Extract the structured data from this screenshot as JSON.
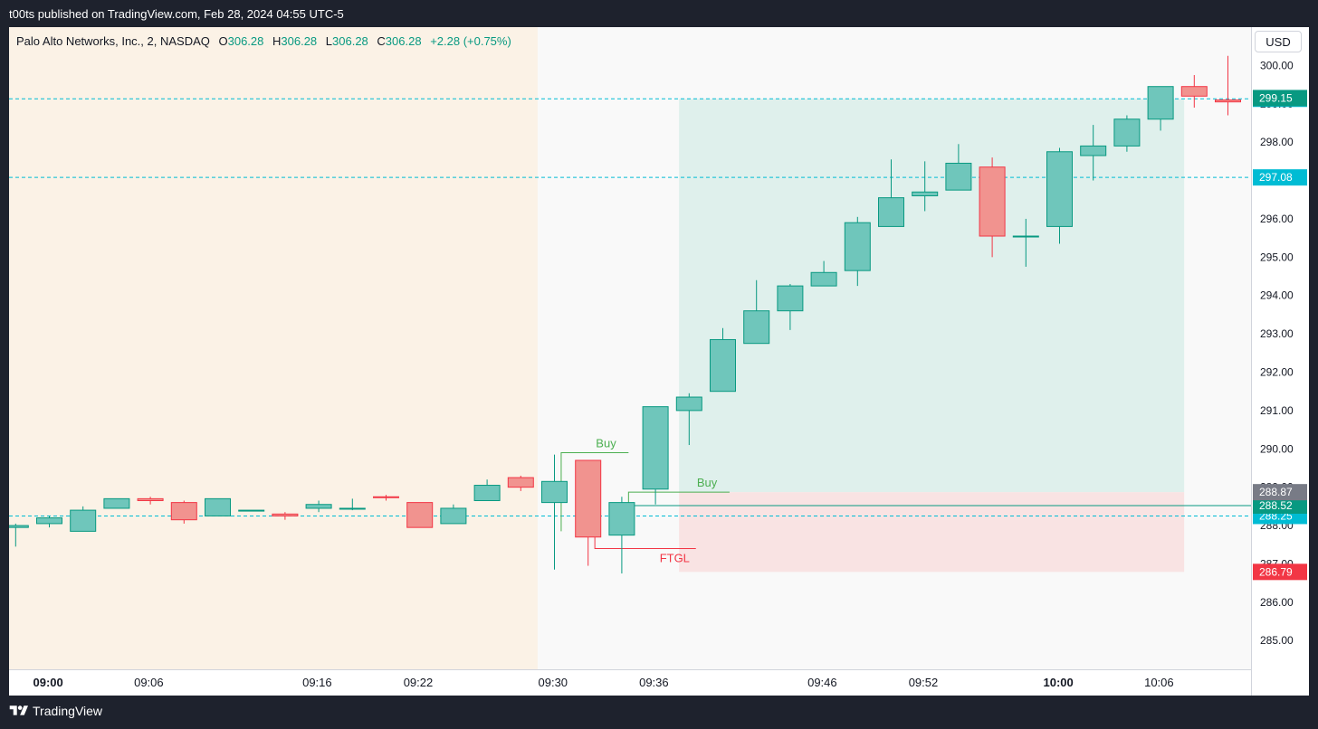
{
  "header": {
    "published_text": "t00ts published on TradingView.com, Feb 28, 2024 04:55 UTC-5"
  },
  "footer": {
    "brand": "TradingView",
    "logo_icon": "tradingview-logo-icon"
  },
  "legend": {
    "symbol": "Palo Alto Networks, Inc., 2, NASDAQ",
    "open_label": "O",
    "open": "306.28",
    "high_label": "H",
    "high": "306.28",
    "low_label": "L",
    "low": "306.28",
    "close_label": "C",
    "close": "306.28",
    "change": "+2.28 (+0.75%)"
  },
  "currency_button": "USD",
  "colors": {
    "up": "#089981",
    "up_fill": "#6fc6bb",
    "down": "#f23645",
    "down_fill": "#f1938f",
    "premarket_bg": "#fbf2e6",
    "target_zone": "#dff0ec",
    "stop_zone": "#f9e3e3",
    "level_line": "#00bcd4",
    "buy_label": "#4caf50"
  },
  "chart_data": {
    "type": "candlestick",
    "yaxis": {
      "min": 284.25,
      "max": 301.0,
      "ticks": [
        "285.00",
        "286.00",
        "287.00",
        "288.00",
        "289.00",
        "290.00",
        "291.00",
        "292.00",
        "293.00",
        "294.00",
        "295.00",
        "296.00",
        "297.00",
        "298.00",
        "299.00",
        "300.00"
      ]
    },
    "xaxis": {
      "ticks": [
        {
          "label": "09:00",
          "bold": true,
          "index": 0
        },
        {
          "label": "09:06",
          "bold": false,
          "index": 3
        },
        {
          "label": "09:16",
          "bold": false,
          "index": 8
        },
        {
          "label": "09:22",
          "bold": false,
          "index": 11
        },
        {
          "label": "09:30",
          "bold": false,
          "index": 15
        },
        {
          "label": "09:36",
          "bold": false,
          "index": 18
        },
        {
          "label": "09:46",
          "bold": false,
          "index": 23
        },
        {
          "label": "09:52",
          "bold": false,
          "index": 26
        },
        {
          "label": "10:00",
          "bold": true,
          "index": 30
        },
        {
          "label": "10:06",
          "bold": false,
          "index": 33
        }
      ]
    },
    "first_bar_index": -1,
    "candles": [
      {
        "o": 287.95,
        "h": 288.05,
        "l": 287.45,
        "c": 288.0
      },
      {
        "o": 288.05,
        "h": 288.25,
        "l": 287.95,
        "c": 288.2
      },
      {
        "o": 287.85,
        "h": 288.5,
        "l": 287.85,
        "c": 288.4
      },
      {
        "o": 288.45,
        "h": 288.7,
        "l": 288.45,
        "c": 288.7
      },
      {
        "o": 288.7,
        "h": 288.75,
        "l": 288.55,
        "c": 288.65
      },
      {
        "o": 288.6,
        "h": 288.65,
        "l": 288.05,
        "c": 288.15
      },
      {
        "o": 288.25,
        "h": 288.7,
        "l": 288.25,
        "c": 288.7
      },
      {
        "o": 288.4,
        "h": 288.4,
        "l": 288.4,
        "c": 288.4
      },
      {
        "o": 288.3,
        "h": 288.35,
        "l": 288.15,
        "c": 288.25
      },
      {
        "o": 288.45,
        "h": 288.65,
        "l": 288.35,
        "c": 288.55
      },
      {
        "o": 288.45,
        "h": 288.7,
        "l": 288.4,
        "c": 288.45
      },
      {
        "o": 288.75,
        "h": 288.8,
        "l": 288.65,
        "c": 288.73
      },
      {
        "o": 288.6,
        "h": 288.6,
        "l": 287.95,
        "c": 287.95
      },
      {
        "o": 288.05,
        "h": 288.55,
        "l": 288.05,
        "c": 288.45
      },
      {
        "o": 288.65,
        "h": 289.2,
        "l": 288.65,
        "c": 289.05
      },
      {
        "o": 289.25,
        "h": 289.3,
        "l": 288.9,
        "c": 289.0
      },
      {
        "o": 288.6,
        "h": 289.85,
        "l": 286.85,
        "c": 289.15
      },
      {
        "o": 289.7,
        "h": 289.7,
        "l": 286.95,
        "c": 287.7
      },
      {
        "o": 287.75,
        "h": 288.75,
        "l": 286.75,
        "c": 288.6
      },
      {
        "o": 288.95,
        "h": 291.1,
        "l": 288.55,
        "c": 291.1
      },
      {
        "o": 291.0,
        "h": 291.45,
        "l": 290.1,
        "c": 291.35
      },
      {
        "o": 291.5,
        "h": 293.15,
        "l": 291.5,
        "c": 292.85
      },
      {
        "o": 292.75,
        "h": 294.4,
        "l": 292.75,
        "c": 293.6
      },
      {
        "o": 293.6,
        "h": 294.3,
        "l": 293.1,
        "c": 294.25
      },
      {
        "o": 294.25,
        "h": 294.9,
        "l": 294.25,
        "c": 294.6
      },
      {
        "o": 294.65,
        "h": 296.05,
        "l": 294.25,
        "c": 295.9
      },
      {
        "o": 295.8,
        "h": 297.55,
        "l": 295.8,
        "c": 296.55
      },
      {
        "o": 296.6,
        "h": 297.5,
        "l": 296.2,
        "c": 296.7
      },
      {
        "o": 296.75,
        "h": 297.95,
        "l": 296.75,
        "c": 297.45
      },
      {
        "o": 297.35,
        "h": 297.6,
        "l": 295.0,
        "c": 295.55
      },
      {
        "o": 295.55,
        "h": 296.0,
        "l": 294.75,
        "c": 295.55
      },
      {
        "o": 295.8,
        "h": 297.85,
        "l": 295.35,
        "c": 297.75
      },
      {
        "o": 297.65,
        "h": 298.45,
        "l": 297.0,
        "c": 297.9
      },
      {
        "o": 297.9,
        "h": 298.7,
        "l": 297.75,
        "c": 298.6
      },
      {
        "o": 298.6,
        "h": 299.45,
        "l": 298.3,
        "c": 299.45
      },
      {
        "o": 299.45,
        "h": 299.75,
        "l": 298.9,
        "c": 299.2
      },
      {
        "o": 299.1,
        "h": 300.25,
        "l": 298.7,
        "c": 299.05
      }
    ],
    "premarket_end_index": 14.5,
    "levels": [
      {
        "value": 299.13,
        "style": "dashed",
        "label": "299.13",
        "label_bg": "#00bcd4"
      },
      {
        "value": 297.08,
        "style": "dashed",
        "label": "297.08",
        "label_bg": "#00bcd4"
      },
      {
        "value": 288.25,
        "style": "dashed",
        "label": "288.25",
        "label_bg": "#00bcd4"
      },
      {
        "value": 288.52,
        "style": "solid",
        "label": "288.52",
        "label_bg": "#089981"
      }
    ],
    "price_labels": [
      {
        "value": 299.15,
        "label": "299.15",
        "bg": "#089981"
      },
      {
        "value": 288.87,
        "label": "288.87",
        "bg": "#787b86"
      },
      {
        "value": 286.79,
        "label": "286.79",
        "bg": "#f23645"
      }
    ],
    "position": {
      "start_index": 18.7,
      "end_index": 33.7,
      "entry": 288.87,
      "target": 299.13,
      "stop": 286.79
    },
    "annotations": [
      {
        "text": "Buy",
        "color": "#4caf50",
        "bracket_x1": 15.2,
        "bracket_x2": 17.2,
        "bracket_top": 289.9,
        "bracket_bottom": 287.85,
        "text_x": 16.5
      },
      {
        "text": "Buy",
        "color": "#4caf50",
        "bracket_x1": 17.2,
        "bracket_x2": 20.2,
        "bracket_top": 288.87,
        "bracket_bottom": 288.6,
        "text_x": 19.5
      },
      {
        "text": "FTGL",
        "color": "#f23645",
        "bracket_x1": 16.2,
        "bracket_x2": 19.2,
        "bracket_top": 287.7,
        "bracket_bottom": 287.4,
        "text_x": 18.5,
        "below": true
      }
    ]
  }
}
